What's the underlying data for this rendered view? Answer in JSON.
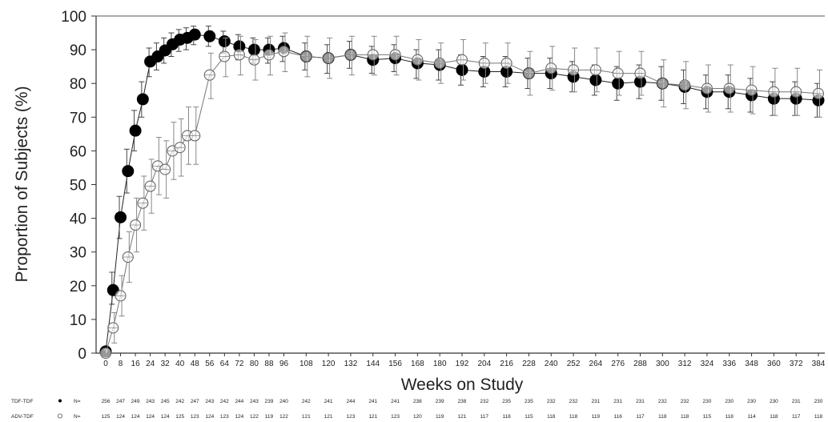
{
  "chart_data": {
    "type": "line",
    "title": "",
    "xlabel": "Weeks on Study",
    "ylabel": "Proportion of Subjects (%)",
    "xlim": [
      0,
      384
    ],
    "ylim": [
      0,
      100
    ],
    "y_ticks": [
      "0",
      "10",
      "20",
      "30",
      "40",
      "50",
      "60",
      "70",
      "80",
      "90",
      "100"
    ],
    "x_ticks": [
      "0",
      "8",
      "16",
      "24",
      "32",
      "40",
      "48",
      "56",
      "64",
      "72",
      "80",
      "88",
      "96",
      "108",
      "120",
      "132",
      "144",
      "156",
      "168",
      "180",
      "192",
      "204",
      "216",
      "228",
      "240",
      "252",
      "264",
      "276",
      "288",
      "300",
      "312",
      "324",
      "336",
      "348",
      "360",
      "372",
      "384"
    ],
    "series": [
      {
        "name": "TDF-TDF",
        "marker": "filled-circle",
        "color": "#000000",
        "points": [
          {
            "x": 0,
            "y": 0.5,
            "lo": 0,
            "hi": 1
          },
          {
            "x": 4,
            "y": 18.7,
            "lo": 14.5,
            "hi": 24
          },
          {
            "x": 8,
            "y": 40.3,
            "lo": 34,
            "hi": 46.5
          },
          {
            "x": 12,
            "y": 54,
            "lo": 47.5,
            "hi": 60.5
          },
          {
            "x": 16,
            "y": 66,
            "lo": 60,
            "hi": 72
          },
          {
            "x": 20,
            "y": 75.3,
            "lo": 70,
            "hi": 80.5
          },
          {
            "x": 24,
            "y": 86.5,
            "lo": 82,
            "hi": 90.5
          },
          {
            "x": 28,
            "y": 88,
            "lo": 84,
            "hi": 92
          },
          {
            "x": 32,
            "y": 89.8,
            "lo": 86,
            "hi": 93.5
          },
          {
            "x": 36,
            "y": 91.6,
            "lo": 88,
            "hi": 95
          },
          {
            "x": 40,
            "y": 93,
            "lo": 89.5,
            "hi": 96
          },
          {
            "x": 44,
            "y": 93.5,
            "lo": 90,
            "hi": 96.5
          },
          {
            "x": 48,
            "y": 94.5,
            "lo": 91.5,
            "hi": 97
          },
          {
            "x": 56,
            "y": 94,
            "lo": 91,
            "hi": 97
          },
          {
            "x": 64,
            "y": 92.5,
            "lo": 89,
            "hi": 95.5
          },
          {
            "x": 72,
            "y": 91,
            "lo": 87,
            "hi": 94.5
          },
          {
            "x": 80,
            "y": 90,
            "lo": 86,
            "hi": 93.5
          },
          {
            "x": 88,
            "y": 90,
            "lo": 86,
            "hi": 93.5
          },
          {
            "x": 96,
            "y": 90.5,
            "lo": 86.5,
            "hi": 94
          },
          {
            "x": 108,
            "y": 88,
            "lo": 84,
            "hi": 92
          },
          {
            "x": 120,
            "y": 87.5,
            "lo": 83,
            "hi": 91.5
          },
          {
            "x": 132,
            "y": 88.5,
            "lo": 84.5,
            "hi": 92.5
          },
          {
            "x": 144,
            "y": 87,
            "lo": 83,
            "hi": 91
          },
          {
            "x": 156,
            "y": 87.5,
            "lo": 83.5,
            "hi": 91.5
          },
          {
            "x": 168,
            "y": 86,
            "lo": 81.5,
            "hi": 90
          },
          {
            "x": 180,
            "y": 85.5,
            "lo": 81,
            "hi": 90
          },
          {
            "x": 192,
            "y": 84,
            "lo": 79.5,
            "hi": 88.5
          },
          {
            "x": 204,
            "y": 83.5,
            "lo": 79,
            "hi": 88
          },
          {
            "x": 216,
            "y": 83.5,
            "lo": 79,
            "hi": 88
          },
          {
            "x": 228,
            "y": 83,
            "lo": 78.5,
            "hi": 87.5
          },
          {
            "x": 240,
            "y": 83,
            "lo": 78.5,
            "hi": 87.5
          },
          {
            "x": 252,
            "y": 82,
            "lo": 77.5,
            "hi": 86.5
          },
          {
            "x": 264,
            "y": 81,
            "lo": 76.5,
            "hi": 85.5
          },
          {
            "x": 276,
            "y": 80,
            "lo": 75,
            "hi": 85
          },
          {
            "x": 288,
            "y": 80.5,
            "lo": 75.5,
            "hi": 85.5
          },
          {
            "x": 300,
            "y": 80,
            "lo": 75,
            "hi": 85
          },
          {
            "x": 312,
            "y": 79,
            "lo": 74,
            "hi": 84
          },
          {
            "x": 324,
            "y": 77.5,
            "lo": 72.5,
            "hi": 82.5
          },
          {
            "x": 336,
            "y": 77.5,
            "lo": 72.5,
            "hi": 82.5
          },
          {
            "x": 348,
            "y": 76.5,
            "lo": 71.5,
            "hi": 81.5
          },
          {
            "x": 360,
            "y": 75.5,
            "lo": 70.5,
            "hi": 80.5
          },
          {
            "x": 372,
            "y": 75.5,
            "lo": 70.5,
            "hi": 80.5
          },
          {
            "x": 384,
            "y": 75,
            "lo": 70,
            "hi": 80
          }
        ]
      },
      {
        "name": "ADV-TDF",
        "marker": "open-circle",
        "color": "#555555",
        "points": [
          {
            "x": 0,
            "y": 0,
            "lo": 0,
            "hi": 1
          },
          {
            "x": 4,
            "y": 7.5,
            "lo": 3,
            "hi": 12
          },
          {
            "x": 8,
            "y": 17,
            "lo": 11,
            "hi": 23
          },
          {
            "x": 12,
            "y": 28.5,
            "lo": 21,
            "hi": 36
          },
          {
            "x": 16,
            "y": 38,
            "lo": 30,
            "hi": 46
          },
          {
            "x": 20,
            "y": 44.5,
            "lo": 36.5,
            "hi": 52.5
          },
          {
            "x": 24,
            "y": 49.5,
            "lo": 41.5,
            "hi": 57.5
          },
          {
            "x": 28,
            "y": 55.5,
            "lo": 47,
            "hi": 64
          },
          {
            "x": 32,
            "y": 54.5,
            "lo": 46,
            "hi": 63
          },
          {
            "x": 36,
            "y": 60,
            "lo": 51.5,
            "hi": 68.5
          },
          {
            "x": 40,
            "y": 61,
            "lo": 52.5,
            "hi": 69.5
          },
          {
            "x": 44,
            "y": 64.5,
            "lo": 56,
            "hi": 73
          },
          {
            "x": 48,
            "y": 64.5,
            "lo": 56,
            "hi": 73
          },
          {
            "x": 56,
            "y": 82.5,
            "lo": 75.5,
            "hi": 89
          },
          {
            "x": 64,
            "y": 88,
            "lo": 82,
            "hi": 93.5
          },
          {
            "x": 72,
            "y": 88.5,
            "lo": 82.5,
            "hi": 94
          },
          {
            "x": 80,
            "y": 87,
            "lo": 81,
            "hi": 93
          },
          {
            "x": 88,
            "y": 88.5,
            "lo": 82.5,
            "hi": 94
          },
          {
            "x": 96,
            "y": 89.5,
            "lo": 83.5,
            "hi": 95
          },
          {
            "x": 108,
            "y": 88,
            "lo": 82,
            "hi": 94
          },
          {
            "x": 120,
            "y": 87.5,
            "lo": 81.5,
            "hi": 93.5
          },
          {
            "x": 132,
            "y": 88.5,
            "lo": 82.5,
            "hi": 94
          },
          {
            "x": 144,
            "y": 88.5,
            "lo": 82.5,
            "hi": 94
          },
          {
            "x": 156,
            "y": 88.5,
            "lo": 82.5,
            "hi": 94
          },
          {
            "x": 168,
            "y": 87,
            "lo": 81,
            "hi": 93
          },
          {
            "x": 180,
            "y": 86,
            "lo": 80,
            "hi": 92
          },
          {
            "x": 192,
            "y": 87,
            "lo": 81,
            "hi": 93
          },
          {
            "x": 204,
            "y": 86,
            "lo": 80,
            "hi": 92
          },
          {
            "x": 216,
            "y": 86,
            "lo": 80,
            "hi": 92
          },
          {
            "x": 228,
            "y": 83,
            "lo": 76.5,
            "hi": 89.5
          },
          {
            "x": 240,
            "y": 84.5,
            "lo": 78,
            "hi": 91
          },
          {
            "x": 252,
            "y": 84,
            "lo": 77.5,
            "hi": 90.5
          },
          {
            "x": 264,
            "y": 84,
            "lo": 77.5,
            "hi": 90.5
          },
          {
            "x": 276,
            "y": 83,
            "lo": 76.5,
            "hi": 89.5
          },
          {
            "x": 288,
            "y": 83,
            "lo": 76.5,
            "hi": 89.5
          },
          {
            "x": 300,
            "y": 80,
            "lo": 73,
            "hi": 87
          },
          {
            "x": 312,
            "y": 79.5,
            "lo": 72.5,
            "hi": 86.5
          },
          {
            "x": 324,
            "y": 78.5,
            "lo": 71.5,
            "hi": 85.5
          },
          {
            "x": 336,
            "y": 78.5,
            "lo": 71.5,
            "hi": 85.5
          },
          {
            "x": 348,
            "y": 78,
            "lo": 71,
            "hi": 85
          },
          {
            "x": 360,
            "y": 77.5,
            "lo": 70.5,
            "hi": 84.5
          },
          {
            "x": 372,
            "y": 77.5,
            "lo": 70.5,
            "hi": 84.5
          },
          {
            "x": 384,
            "y": 77,
            "lo": 70,
            "hi": 84
          }
        ]
      }
    ],
    "n_at_risk": [
      {
        "label": "TDF-TDF",
        "prefix": "N=",
        "counts": [
          "256",
          "247",
          "249",
          "243",
          "245",
          "242",
          "247",
          "243",
          "242",
          "244",
          "243",
          "239",
          "240",
          "242",
          "241",
          "244",
          "241",
          "241",
          "238",
          "239",
          "238",
          "232",
          "235",
          "235",
          "232",
          "232",
          "231",
          "231",
          "231",
          "232",
          "232",
          "230",
          "230",
          "230",
          "230",
          "231",
          "230"
        ]
      },
      {
        "label": "ADV-TDF",
        "prefix": "N=",
        "counts": [
          "125",
          "124",
          "124",
          "124",
          "124",
          "125",
          "123",
          "124",
          "123",
          "124",
          "122",
          "119",
          "122",
          "121",
          "121",
          "123",
          "121",
          "123",
          "120",
          "119",
          "121",
          "117",
          "118",
          "115",
          "118",
          "118",
          "119",
          "116",
          "117",
          "118",
          "118",
          "115",
          "118",
          "114",
          "118",
          "117",
          "118"
        ]
      }
    ]
  }
}
